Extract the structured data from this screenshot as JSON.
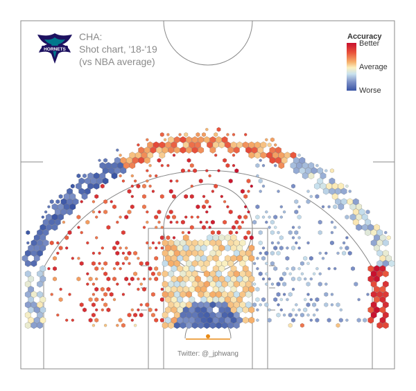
{
  "title": {
    "line1": "CHA:",
    "line2": "Shot chart, '18-'19",
    "line3": "(vs NBA average)"
  },
  "logo": {
    "icon": "charlotte-hornets-logo-icon",
    "text": "HORNETS"
  },
  "legend": {
    "title": "Accuracy",
    "better": "Better",
    "average": "Average",
    "worse": "Worse"
  },
  "credit": "Twitter: @_jphwang",
  "colors": {
    "better": "#c8102e",
    "average": "#fbf0c0",
    "worse": "#3a55a4",
    "court_line": "#777777"
  },
  "chart_data": {
    "type": "heatmap",
    "scale": "accuracy relative to NBA average, -1 (worse) to +1 (better)",
    "zones": [
      {
        "zone": "restricted-area",
        "accuracy": -0.7,
        "volume": "very high"
      },
      {
        "zone": "paint-non-ra",
        "accuracy": 0.1,
        "volume": "high"
      },
      {
        "zone": "mid-range-left",
        "accuracy": 0.6,
        "volume": "low"
      },
      {
        "zone": "mid-range-center",
        "accuracy": 0.75,
        "volume": "medium"
      },
      {
        "zone": "mid-range-right",
        "accuracy": -0.35,
        "volume": "low"
      },
      {
        "zone": "left-corner-three",
        "accuracy": -0.2,
        "volume": "medium"
      },
      {
        "zone": "right-corner-three",
        "accuracy": 0.8,
        "volume": "medium"
      },
      {
        "zone": "left-wing-three",
        "accuracy": -0.75,
        "volume": "high"
      },
      {
        "zone": "top-of-key-three",
        "accuracy": 0.4,
        "volume": "very high"
      },
      {
        "zone": "right-wing-three",
        "accuracy": -0.2,
        "volume": "high"
      },
      {
        "zone": "long-two-baseline",
        "accuracy": 0.3,
        "volume": "low"
      }
    ]
  }
}
